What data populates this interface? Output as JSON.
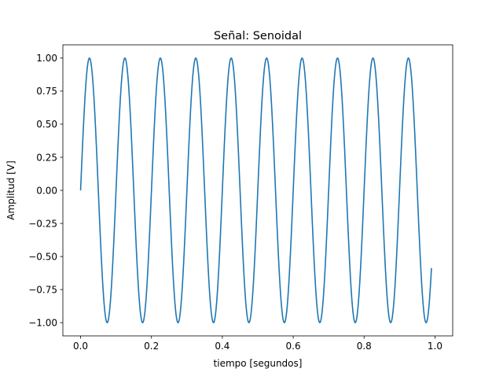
{
  "chart_data": {
    "type": "line",
    "title": "Señal: Senoidal",
    "xlabel": "tiempo [segundos]",
    "ylabel": "Amplitud [V]",
    "xlim": [
      -0.05,
      1.05
    ],
    "ylim": [
      -1.1,
      1.1
    ],
    "x_ticks": [
      0.0,
      0.2,
      0.4,
      0.6,
      0.8,
      1.0
    ],
    "x_tick_labels": [
      "0.0",
      "0.2",
      "0.4",
      "0.6",
      "0.8",
      "1.0"
    ],
    "y_ticks": [
      -1.0,
      -0.75,
      -0.5,
      -0.25,
      0.0,
      0.25,
      0.5,
      0.75,
      1.0
    ],
    "y_tick_labels": [
      "−1.00",
      "−0.75",
      "−0.50",
      "−0.25",
      "0.00",
      "0.25",
      "0.50",
      "0.75",
      "1.00"
    ],
    "grid": false,
    "series": [
      {
        "function": "sin",
        "frequency_hz": 10,
        "amplitude": 1.0,
        "x_start": 0.0,
        "x_end": 0.99,
        "color": "#1f77b4"
      }
    ]
  }
}
